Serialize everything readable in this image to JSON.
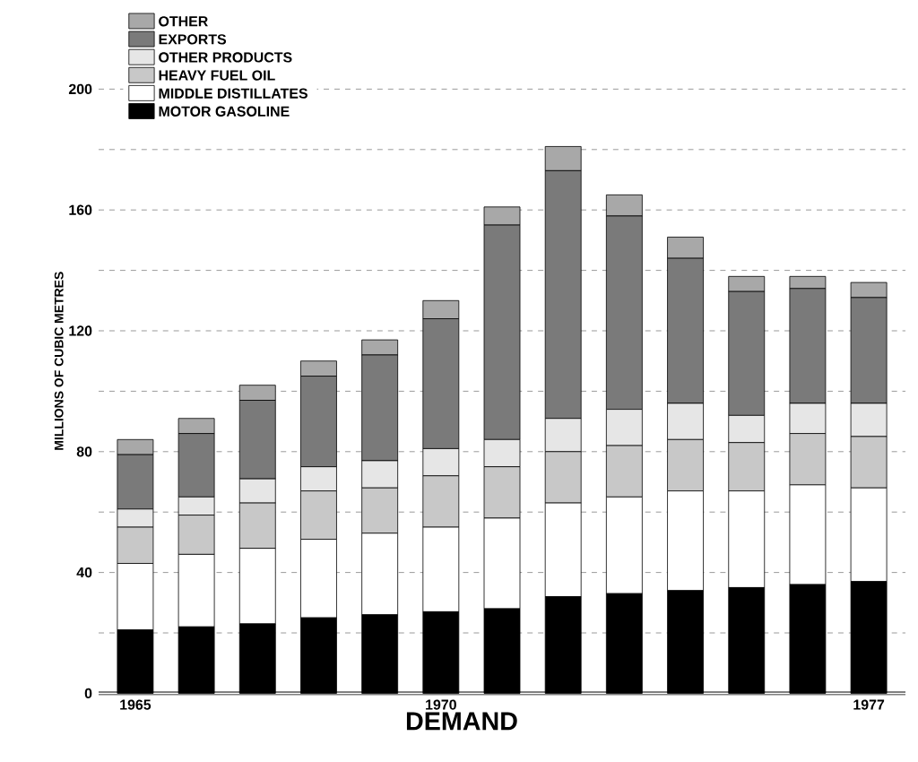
{
  "chart_data": {
    "type": "bar",
    "stacked": true,
    "title": "DEMAND",
    "ylabel": "MILLIONS OF CUBIC METRES",
    "categories": [
      "1965",
      null,
      null,
      null,
      null,
      "1970",
      null,
      null,
      null,
      null,
      null,
      null,
      "1977"
    ],
    "series": [
      {
        "name": "MOTOR GASOLINE",
        "color": "#000000",
        "values": [
          21,
          22,
          23,
          25,
          26,
          27,
          28,
          32,
          33,
          34,
          35,
          36,
          37
        ]
      },
      {
        "name": "MIDDLE DISTILLATES",
        "color": "#ffffff",
        "values": [
          22,
          24,
          25,
          26,
          27,
          28,
          30,
          31,
          32,
          33,
          32,
          33,
          31
        ]
      },
      {
        "name": "HEAVY FUEL OIL",
        "color": "#c8c8c8",
        "values": [
          12,
          13,
          15,
          16,
          15,
          17,
          17,
          17,
          17,
          17,
          16,
          17,
          17
        ]
      },
      {
        "name": "OTHER PRODUCTS",
        "color": "#e6e6e6",
        "values": [
          6,
          6,
          8,
          8,
          9,
          9,
          9,
          11,
          12,
          12,
          9,
          10,
          11
        ]
      },
      {
        "name": "EXPORTS",
        "color": "#7a7a7a",
        "values": [
          18,
          21,
          26,
          30,
          35,
          43,
          71,
          82,
          64,
          48,
          41,
          38,
          35
        ]
      },
      {
        "name": "OTHER",
        "color": "#a8a8a8",
        "values": [
          5,
          5,
          5,
          5,
          5,
          6,
          6,
          8,
          7,
          7,
          5,
          4,
          5
        ]
      }
    ],
    "ylim": [
      0,
      220
    ],
    "yticks": [
      0,
      {
        "value": 20,
        "label": null
      },
      40,
      {
        "value": 60,
        "label": null
      },
      80,
      {
        "value": 100,
        "label": null
      },
      120,
      {
        "value": 140,
        "label": null
      },
      160,
      {
        "value": 180,
        "label": null
      },
      200
    ],
    "grid": "y",
    "legend": "top left"
  }
}
